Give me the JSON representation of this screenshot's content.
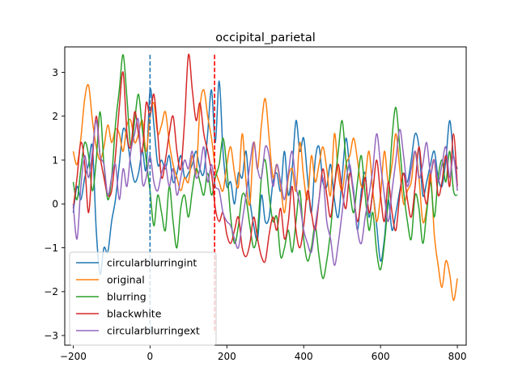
{
  "chart_data": {
    "type": "line",
    "title": "occipital_parietal",
    "xlabel": "",
    "ylabel": "",
    "xlim": [
      -222,
      823
    ],
    "ylim": [
      -3.22,
      3.58
    ],
    "xticks": [
      -200,
      0,
      200,
      400,
      600,
      800
    ],
    "yticks": [
      -3,
      -2,
      -1,
      0,
      1,
      2,
      3
    ],
    "grid": false,
    "legend_position": "lower-left",
    "vlines": [
      {
        "x": 0,
        "color": "#1f77b4",
        "style": "dashed"
      },
      {
        "x": 168,
        "color": "#ff0000",
        "style": "dashed"
      }
    ],
    "series": [
      {
        "name": "circularblurringint",
        "color": "#1f77b4",
        "x": [
          -200,
          -190,
          -180,
          -170,
          -160,
          -150,
          -140,
          -130,
          -120,
          -110,
          -100,
          -90,
          -80,
          -70,
          -60,
          -50,
          -40,
          -30,
          -20,
          -10,
          0,
          10,
          20,
          30,
          40,
          50,
          60,
          70,
          80,
          90,
          100,
          110,
          120,
          130,
          140,
          150,
          160,
          170,
          180,
          190,
          200,
          210,
          220,
          230,
          240,
          250,
          260,
          270,
          280,
          290,
          300,
          310,
          320,
          330,
          340,
          350,
          360,
          370,
          380,
          390,
          400,
          410,
          420,
          430,
          440,
          450,
          460,
          470,
          480,
          490,
          500,
          510,
          520,
          530,
          540,
          550,
          560,
          570,
          580,
          590,
          600,
          610,
          620,
          630,
          640,
          650,
          660,
          670,
          680,
          690,
          700,
          710,
          720,
          730,
          740,
          750,
          760,
          770,
          780,
          790,
          800
        ],
        "values": [
          -0.2,
          0.4,
          0.1,
          0.6,
          0.9,
          1.3,
          -0.6,
          -1.6,
          -1.0,
          -1.1,
          -0.4,
          0.1,
          0.9,
          1.7,
          1.5,
          0.9,
          0.5,
          0.7,
          1.2,
          0.8,
          2.6,
          1.8,
          0.9,
          1.0,
          0.8,
          1.1,
          0.5,
          0.7,
          1.1,
          0.6,
          0.7,
          0.9,
          1.2,
          0.8,
          0.7,
          1.6,
          2.6,
          1.4,
          2.8,
          1.2,
          0.4,
          0.5,
          0.0,
          0.7,
          0.6,
          1.2,
          0.1,
          -0.5,
          -0.8,
          0.2,
          -0.4,
          -0.3,
          0.5,
          0.7,
          0.3,
          1.2,
          0.2,
          0.8,
          1.9,
          1.2,
          1.5,
          0.6,
          -0.2,
          1.0,
          1.3,
          0.5,
          0.4,
          0.9,
          0.1,
          -0.3,
          0.6,
          1.5,
          0.8,
          0.3,
          -0.6,
          0.3,
          0.7,
          -0.3,
          0.2,
          -0.5,
          -1.3,
          -0.8,
          0.1,
          -0.6,
          -0.2,
          0.3,
          0.7,
          0.5,
          1.0,
          1.6,
          1.3,
          0.2,
          0.5,
          0.9,
          1.2,
          0.6,
          0.4,
          1.0,
          1.9,
          1.1,
          0.8
        ]
      },
      {
        "name": "original",
        "color": "#ff7f0e",
        "x": [
          -200,
          -190,
          -180,
          -170,
          -160,
          -150,
          -140,
          -130,
          -120,
          -110,
          -100,
          -90,
          -80,
          -70,
          -60,
          -50,
          -40,
          -30,
          -20,
          -10,
          0,
          10,
          20,
          30,
          40,
          50,
          60,
          70,
          80,
          90,
          100,
          110,
          120,
          130,
          140,
          150,
          160,
          170,
          180,
          190,
          200,
          210,
          220,
          230,
          240,
          250,
          260,
          270,
          280,
          290,
          300,
          310,
          320,
          330,
          340,
          350,
          360,
          370,
          380,
          390,
          400,
          410,
          420,
          430,
          440,
          450,
          460,
          470,
          480,
          490,
          500,
          510,
          520,
          530,
          540,
          550,
          560,
          570,
          580,
          590,
          600,
          610,
          620,
          630,
          640,
          650,
          660,
          670,
          680,
          690,
          700,
          710,
          720,
          730,
          740,
          750,
          760,
          770,
          780,
          790,
          800
        ],
        "values": [
          1.2,
          0.9,
          1.5,
          2.4,
          2.7,
          1.9,
          1.3,
          1.0,
          1.3,
          1.8,
          1.4,
          1.7,
          1.6,
          1.2,
          1.8,
          1.9,
          1.4,
          1.6,
          1.9,
          1.2,
          2.0,
          2.3,
          1.6,
          1.8,
          2.1,
          1.4,
          0.9,
          0.6,
          0.3,
          0.6,
          0.5,
          1.1,
          0.7,
          2.2,
          2.6,
          2.0,
          1.5,
          0.8,
          0.5,
          0.3,
          0.9,
          1.3,
          0.7,
          0.4,
          1.6,
          0.5,
          0.0,
          1.4,
          0.8,
          1.8,
          2.4,
          1.5,
          0.6,
          0.9,
          0.4,
          -0.2,
          0.6,
          0.8,
          0.3,
          1.4,
          0.6,
          0.1,
          1.1,
          0.5,
          0.9,
          1.3,
          0.8,
          0.2,
          1.6,
          0.7,
          0.3,
          0.9,
          1.1,
          1.5,
          1.0,
          0.4,
          0.6,
          1.2,
          0.3,
          -0.4,
          0.2,
          1.2,
          0.5,
          0.9,
          1.6,
          0.8,
          0.0,
          0.3,
          0.5,
          1.2,
          0.6,
          -0.4,
          -0.1,
          0.7,
          -0.7,
          -1.4,
          -1.9,
          -1.3,
          -1.6,
          -2.2,
          -1.7
        ]
      },
      {
        "name": "blurring",
        "color": "#2ca02c",
        "x": [
          -200,
          -190,
          -180,
          -170,
          -160,
          -150,
          -140,
          -130,
          -120,
          -110,
          -100,
          -90,
          -80,
          -70,
          -60,
          -50,
          -40,
          -30,
          -20,
          -10,
          0,
          10,
          20,
          30,
          40,
          50,
          60,
          70,
          80,
          90,
          100,
          110,
          120,
          130,
          140,
          150,
          160,
          170,
          180,
          190,
          200,
          210,
          220,
          230,
          240,
          250,
          260,
          270,
          280,
          290,
          300,
          310,
          320,
          330,
          340,
          350,
          360,
          370,
          380,
          390,
          400,
          410,
          420,
          430,
          440,
          450,
          460,
          470,
          480,
          490,
          500,
          510,
          520,
          530,
          540,
          550,
          560,
          570,
          580,
          590,
          600,
          610,
          620,
          630,
          640,
          650,
          660,
          670,
          680,
          690,
          700,
          710,
          720,
          730,
          740,
          750,
          760,
          770,
          780,
          790,
          800
        ],
        "values": [
          0.5,
          0.1,
          0.8,
          1.4,
          1.1,
          0.3,
          1.0,
          2.1,
          0.9,
          0.1,
          0.6,
          1.8,
          2.6,
          3.4,
          2.4,
          1.3,
          1.9,
          2.5,
          1.7,
          1.0,
          0.3,
          -0.5,
          0.2,
          -0.2,
          -0.6,
          0.4,
          -0.4,
          -1.0,
          -0.1,
          0.2,
          -0.3,
          0.3,
          0.8,
          0.5,
          0.2,
          0.7,
          0.2,
          0.6,
          0.9,
          1.5,
          0.8,
          -0.3,
          -0.9,
          -0.5,
          0.2,
          0.1,
          -0.5,
          -1.0,
          -0.6,
          0.6,
          1.0,
          0.2,
          -0.4,
          -0.3,
          -1.2,
          -1.0,
          -0.6,
          -1.1,
          -0.4,
          0.3,
          -0.8,
          -1.3,
          -1.0,
          -0.5,
          -1.2,
          -1.7,
          -1.3,
          -0.6,
          0.4,
          1.2,
          1.9,
          1.0,
          0.3,
          -0.2,
          0.5,
          1.1,
          0.2,
          -0.6,
          -0.2,
          -1.1,
          -1.5,
          -0.9,
          0.1,
          1.5,
          2.2,
          1.3,
          0.3,
          -0.4,
          -0.8,
          0.2,
          -0.1,
          -0.9,
          -0.2,
          0.5,
          -0.3,
          0.6,
          1.0,
          0.5,
          1.2,
          0.3,
          0.2
        ]
      },
      {
        "name": "blackwhite",
        "color": "#d62728",
        "x": [
          -200,
          -190,
          -180,
          -170,
          -160,
          -150,
          -140,
          -130,
          -120,
          -110,
          -100,
          -90,
          -80,
          -70,
          -60,
          -50,
          -40,
          -30,
          -20,
          -10,
          0,
          10,
          20,
          30,
          40,
          50,
          60,
          70,
          80,
          90,
          100,
          110,
          120,
          130,
          140,
          150,
          160,
          170,
          180,
          190,
          200,
          210,
          220,
          230,
          240,
          250,
          260,
          270,
          280,
          290,
          300,
          310,
          320,
          330,
          340,
          350,
          360,
          370,
          380,
          390,
          400,
          410,
          420,
          430,
          440,
          450,
          460,
          470,
          480,
          490,
          500,
          510,
          520,
          530,
          540,
          550,
          560,
          570,
          580,
          590,
          600,
          610,
          620,
          630,
          640,
          650,
          660,
          670,
          680,
          690,
          700,
          710,
          720,
          730,
          740,
          750,
          760,
          770,
          780,
          790,
          800
        ],
        "values": [
          -0.1,
          0.6,
          1.4,
          0.9,
          -0.2,
          1.0,
          2.0,
          1.1,
          0.6,
          0.2,
          0.3,
          1.1,
          2.2,
          3.0,
          1.6,
          1.3,
          2.1,
          1.6,
          1.2,
          2.3,
          2.0,
          2.5,
          1.6,
          0.6,
          1.0,
          1.6,
          2.0,
          1.2,
          0.8,
          1.9,
          3.4,
          2.6,
          1.9,
          2.3,
          1.6,
          1.2,
          0.7,
          -0.1,
          -0.4,
          -0.2,
          -0.7,
          -0.9,
          -0.6,
          -0.3,
          -1.0,
          -1.2,
          -0.9,
          -0.3,
          -0.8,
          -1.2,
          -1.3,
          -0.7,
          -0.3,
          -0.6,
          -0.1,
          -0.8,
          -0.4,
          0.4,
          -0.6,
          -1.0,
          -0.5,
          0.3,
          -0.2,
          -0.6,
          0.1,
          0.8,
          0.2,
          -0.3,
          0.4,
          0.9,
          0.3,
          -0.1,
          0.7,
          0.2,
          -0.4,
          0.1,
          0.6,
          -0.2,
          0.3,
          1.0,
          0.2,
          -0.4,
          0.5,
          -0.2,
          -0.6,
          0.2,
          0.7,
          0.1,
          -0.3,
          0.4,
          1.3,
          0.5,
          0.0,
          0.6,
          1.0,
          0.2,
          0.5,
          1.1,
          0.4,
          1.6,
          0.4
        ]
      },
      {
        "name": "circularblurringext",
        "color": "#9467bd",
        "x": [
          -200,
          -190,
          -180,
          -170,
          -160,
          -150,
          -140,
          -130,
          -120,
          -110,
          -100,
          -90,
          -80,
          -70,
          -60,
          -50,
          -40,
          -30,
          -20,
          -10,
          0,
          10,
          20,
          30,
          40,
          50,
          60,
          70,
          80,
          90,
          100,
          110,
          120,
          130,
          140,
          150,
          160,
          170,
          180,
          190,
          200,
          210,
          220,
          230,
          240,
          250,
          260,
          270,
          280,
          290,
          300,
          310,
          320,
          330,
          340,
          350,
          360,
          370,
          380,
          390,
          400,
          410,
          420,
          430,
          440,
          450,
          460,
          470,
          480,
          490,
          500,
          510,
          520,
          530,
          540,
          550,
          560,
          570,
          580,
          590,
          600,
          610,
          620,
          630,
          640,
          650,
          660,
          670,
          680,
          690,
          700,
          710,
          720,
          730,
          740,
          750,
          760,
          770,
          780,
          790,
          800
        ],
        "values": [
          0.0,
          -0.8,
          0.4,
          1.1,
          0.6,
          1.2,
          1.9,
          1.1,
          0.9,
          0.2,
          0.6,
          0.9,
          0.1,
          0.8,
          0.4,
          1.2,
          1.6,
          1.9,
          0.5,
          0.6,
          1.1,
          0.5,
          0.3,
          0.7,
          0.9,
          0.4,
          0.8,
          0.2,
          0.6,
          1.0,
          0.8,
          1.2,
          0.6,
          0.8,
          1.3,
          0.5,
          0.9,
          0.4,
          0.3,
          -0.2,
          -0.4,
          -0.5,
          -0.8,
          -1.0,
          -0.4,
          0.2,
          0.9,
          1.4,
          0.8,
          0.6,
          1.3,
          1.1,
          0.4,
          0.9,
          0.5,
          0.1,
          0.7,
          1.2,
          0.4,
          0.0,
          -0.6,
          -0.9,
          -1.1,
          -0.5,
          0.1,
          0.6,
          -0.4,
          -0.8,
          -1.4,
          -0.9,
          -0.2,
          0.5,
          0.9,
          0.2,
          -0.6,
          -0.9,
          -0.3,
          0.2,
          0.8,
          1.6,
          0.9,
          0.2,
          -0.4,
          0.3,
          1.0,
          1.7,
          1.1,
          0.4,
          0.8,
          1.2,
          0.6,
          0.9,
          1.4,
          0.7,
          1.0,
          0.5,
          0.9,
          1.3,
          0.6,
          1.1,
          0.3
        ]
      }
    ]
  }
}
